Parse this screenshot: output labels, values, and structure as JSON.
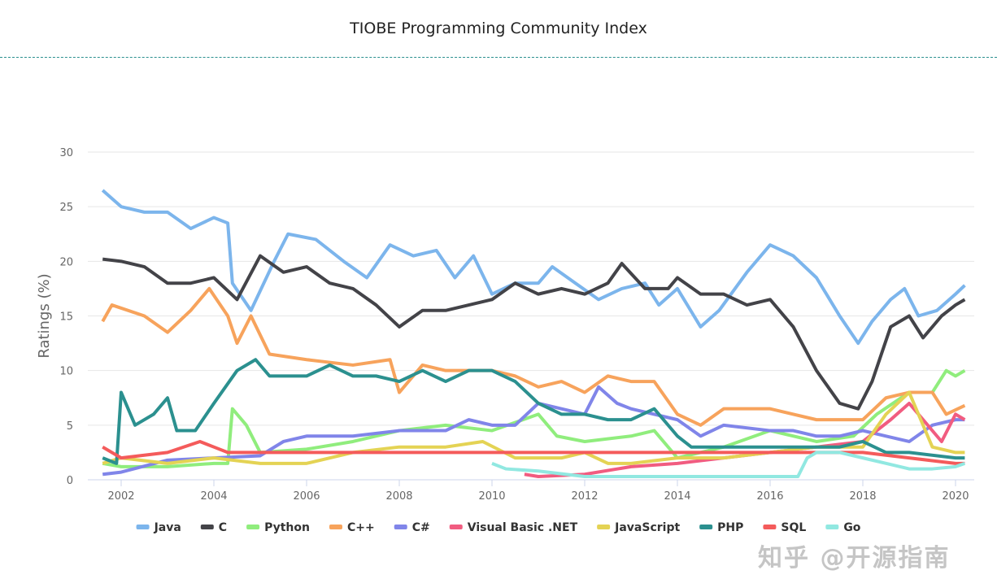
{
  "watermark": "知乎 @开源指南",
  "chart_data": {
    "type": "line",
    "title": "TIOBE Programming Community Index",
    "ylabel": "Ratings (%)",
    "xlabel": "",
    "xlim": [
      2001.5,
      2020.3
    ],
    "ylim": [
      0,
      30
    ],
    "xticks": [
      2002,
      2004,
      2006,
      2008,
      2010,
      2012,
      2014,
      2016,
      2018,
      2020
    ],
    "yticks": [
      0,
      5,
      10,
      15,
      20,
      25,
      30
    ],
    "grid": true,
    "legend": "bottom",
    "series": [
      {
        "name": "Java",
        "color": "#7cb5ec",
        "points": [
          [
            2001.6,
            26.5
          ],
          [
            2002,
            25
          ],
          [
            2002.5,
            24.5
          ],
          [
            2003,
            24.5
          ],
          [
            2003.5,
            23
          ],
          [
            2004,
            24
          ],
          [
            2004.3,
            23.5
          ],
          [
            2004.4,
            18
          ],
          [
            2004.8,
            15.5
          ],
          [
            2005.3,
            20
          ],
          [
            2005.6,
            22.5
          ],
          [
            2006.2,
            22
          ],
          [
            2006.8,
            20
          ],
          [
            2007.3,
            18.5
          ],
          [
            2007.8,
            21.5
          ],
          [
            2008.3,
            20.5
          ],
          [
            2008.8,
            21
          ],
          [
            2009.2,
            18.5
          ],
          [
            2009.6,
            20.5
          ],
          [
            2010,
            17
          ],
          [
            2010.5,
            18
          ],
          [
            2011,
            18
          ],
          [
            2011.3,
            19.5
          ],
          [
            2011.8,
            18
          ],
          [
            2012.3,
            16.5
          ],
          [
            2012.8,
            17.5
          ],
          [
            2013.3,
            18
          ],
          [
            2013.6,
            16
          ],
          [
            2014,
            17.5
          ],
          [
            2014.5,
            14
          ],
          [
            2014.9,
            15.5
          ],
          [
            2015.5,
            19
          ],
          [
            2016,
            21.5
          ],
          [
            2016.5,
            20.5
          ],
          [
            2017,
            18.5
          ],
          [
            2017.5,
            15
          ],
          [
            2017.9,
            12.5
          ],
          [
            2018.2,
            14.5
          ],
          [
            2018.6,
            16.5
          ],
          [
            2018.9,
            17.5
          ],
          [
            2019.2,
            15
          ],
          [
            2019.6,
            15.5
          ],
          [
            2020,
            17
          ],
          [
            2020.2,
            17.8
          ]
        ]
      },
      {
        "name": "C",
        "color": "#434348",
        "points": [
          [
            2001.6,
            20.2
          ],
          [
            2002,
            20
          ],
          [
            2002.5,
            19.5
          ],
          [
            2003,
            18
          ],
          [
            2003.5,
            18
          ],
          [
            2004,
            18.5
          ],
          [
            2004.5,
            16.5
          ],
          [
            2005,
            20.5
          ],
          [
            2005.5,
            19
          ],
          [
            2006,
            19.5
          ],
          [
            2006.5,
            18
          ],
          [
            2007,
            17.5
          ],
          [
            2007.5,
            16
          ],
          [
            2008,
            14
          ],
          [
            2008.5,
            15.5
          ],
          [
            2009,
            15.5
          ],
          [
            2009.5,
            16
          ],
          [
            2010,
            16.5
          ],
          [
            2010.5,
            18
          ],
          [
            2011,
            17
          ],
          [
            2011.5,
            17.5
          ],
          [
            2012,
            17
          ],
          [
            2012.5,
            18
          ],
          [
            2012.8,
            19.8
          ],
          [
            2013.3,
            17.5
          ],
          [
            2013.8,
            17.5
          ],
          [
            2014,
            18.5
          ],
          [
            2014.5,
            17
          ],
          [
            2015,
            17
          ],
          [
            2015.5,
            16
          ],
          [
            2016,
            16.5
          ],
          [
            2016.5,
            14
          ],
          [
            2017,
            10
          ],
          [
            2017.5,
            7
          ],
          [
            2017.9,
            6.5
          ],
          [
            2018.2,
            9
          ],
          [
            2018.6,
            14
          ],
          [
            2019,
            15
          ],
          [
            2019.3,
            13
          ],
          [
            2019.7,
            15
          ],
          [
            2020,
            16
          ],
          [
            2020.2,
            16.5
          ]
        ]
      },
      {
        "name": "Python",
        "color": "#90ed7d",
        "points": [
          [
            2001.6,
            1.5
          ],
          [
            2002,
            1.2
          ],
          [
            2003,
            1.2
          ],
          [
            2004,
            1.5
          ],
          [
            2004.3,
            1.5
          ],
          [
            2004.4,
            6.5
          ],
          [
            2004.7,
            5
          ],
          [
            2005,
            2.5
          ],
          [
            2006,
            2.8
          ],
          [
            2007,
            3.5
          ],
          [
            2008,
            4.5
          ],
          [
            2009,
            5
          ],
          [
            2010,
            4.5
          ],
          [
            2011,
            6
          ],
          [
            2011.4,
            4
          ],
          [
            2012,
            3.5
          ],
          [
            2013,
            4
          ],
          [
            2013.5,
            4.5
          ],
          [
            2014,
            2
          ],
          [
            2015,
            3
          ],
          [
            2016,
            4.5
          ],
          [
            2017,
            3.5
          ],
          [
            2017.8,
            4
          ],
          [
            2018.3,
            6
          ],
          [
            2019,
            8
          ],
          [
            2019.5,
            8
          ],
          [
            2019.8,
            10
          ],
          [
            2020,
            9.5
          ],
          [
            2020.2,
            10
          ]
        ]
      },
      {
        "name": "C++",
        "color": "#f7a35c",
        "points": [
          [
            2001.6,
            14.5
          ],
          [
            2001.8,
            16
          ],
          [
            2002.5,
            15
          ],
          [
            2003,
            13.5
          ],
          [
            2003.5,
            15.5
          ],
          [
            2003.9,
            17.5
          ],
          [
            2004.3,
            15
          ],
          [
            2004.5,
            12.5
          ],
          [
            2004.8,
            15
          ],
          [
            2005.2,
            11.5
          ],
          [
            2006,
            11
          ],
          [
            2007,
            10.5
          ],
          [
            2007.8,
            11
          ],
          [
            2008,
            8
          ],
          [
            2008.5,
            10.5
          ],
          [
            2009,
            10
          ],
          [
            2010,
            10
          ],
          [
            2010.5,
            9.5
          ],
          [
            2011,
            8.5
          ],
          [
            2011.5,
            9
          ],
          [
            2012,
            8
          ],
          [
            2012.5,
            9.5
          ],
          [
            2013,
            9
          ],
          [
            2013.5,
            9
          ],
          [
            2014,
            6
          ],
          [
            2014.5,
            5
          ],
          [
            2015,
            6.5
          ],
          [
            2016,
            6.5
          ],
          [
            2017,
            5.5
          ],
          [
            2018,
            5.5
          ],
          [
            2018.5,
            7.5
          ],
          [
            2019,
            8
          ],
          [
            2019.5,
            8
          ],
          [
            2019.8,
            6
          ],
          [
            2020.2,
            6.8
          ]
        ]
      },
      {
        "name": "C#",
        "color": "#8085e9",
        "points": [
          [
            2001.6,
            0.5
          ],
          [
            2002,
            0.7
          ],
          [
            2003,
            1.8
          ],
          [
            2004,
            2
          ],
          [
            2005,
            2.2
          ],
          [
            2005.5,
            3.5
          ],
          [
            2006,
            4
          ],
          [
            2007,
            4
          ],
          [
            2008,
            4.5
          ],
          [
            2009,
            4.5
          ],
          [
            2009.5,
            5.5
          ],
          [
            2010,
            5
          ],
          [
            2010.5,
            5
          ],
          [
            2011,
            7
          ],
          [
            2011.5,
            6.5
          ],
          [
            2012,
            6
          ],
          [
            2012.3,
            8.5
          ],
          [
            2012.7,
            7
          ],
          [
            2013,
            6.5
          ],
          [
            2013.5,
            6
          ],
          [
            2014,
            5.5
          ],
          [
            2014.5,
            4
          ],
          [
            2015,
            5
          ],
          [
            2016,
            4.5
          ],
          [
            2016.5,
            4.5
          ],
          [
            2017,
            4
          ],
          [
            2017.5,
            4
          ],
          [
            2018,
            4.5
          ],
          [
            2018.5,
            4
          ],
          [
            2019,
            3.5
          ],
          [
            2019.5,
            5
          ],
          [
            2020,
            5.5
          ],
          [
            2020.2,
            5.5
          ]
        ]
      },
      {
        "name": "Visual Basic .NET",
        "color": "#f15c80",
        "points": [
          [
            2010.7,
            0.5
          ],
          [
            2011,
            0.3
          ],
          [
            2012,
            0.5
          ],
          [
            2013,
            1.2
          ],
          [
            2014,
            1.5
          ],
          [
            2015,
            2
          ],
          [
            2016,
            2.5
          ],
          [
            2017,
            3
          ],
          [
            2018,
            3.5
          ],
          [
            2018.3,
            4.5
          ],
          [
            2018.6,
            5.5
          ],
          [
            2019,
            7
          ],
          [
            2019.4,
            5
          ],
          [
            2019.7,
            3.5
          ],
          [
            2020,
            6
          ],
          [
            2020.2,
            5.5
          ]
        ]
      },
      {
        "name": "JavaScript",
        "color": "#e4d354",
        "points": [
          [
            2001.6,
            1.5
          ],
          [
            2002,
            2
          ],
          [
            2003,
            1.5
          ],
          [
            2004,
            2
          ],
          [
            2005,
            1.5
          ],
          [
            2006,
            1.5
          ],
          [
            2007,
            2.5
          ],
          [
            2008,
            3
          ],
          [
            2009,
            3
          ],
          [
            2009.8,
            3.5
          ],
          [
            2010.5,
            2
          ],
          [
            2011,
            2
          ],
          [
            2011.5,
            2
          ],
          [
            2012,
            2.5
          ],
          [
            2012.5,
            1.5
          ],
          [
            2013,
            1.5
          ],
          [
            2014,
            2
          ],
          [
            2015,
            2
          ],
          [
            2016,
            2.5
          ],
          [
            2017,
            3
          ],
          [
            2018,
            3
          ],
          [
            2018.5,
            6
          ],
          [
            2019,
            8
          ],
          [
            2019.5,
            3
          ],
          [
            2020,
            2.5
          ],
          [
            2020.2,
            2.5
          ]
        ]
      },
      {
        "name": "PHP",
        "color": "#2b908f",
        "points": [
          [
            2001.6,
            2
          ],
          [
            2001.9,
            1.5
          ],
          [
            2002,
            8
          ],
          [
            2002.3,
            5
          ],
          [
            2002.7,
            6
          ],
          [
            2003,
            7.5
          ],
          [
            2003.2,
            4.5
          ],
          [
            2003.6,
            4.5
          ],
          [
            2004,
            7
          ],
          [
            2004.5,
            10
          ],
          [
            2004.9,
            11
          ],
          [
            2005.2,
            9.5
          ],
          [
            2006,
            9.5
          ],
          [
            2006.5,
            10.5
          ],
          [
            2007,
            9.5
          ],
          [
            2007.5,
            9.5
          ],
          [
            2008,
            9
          ],
          [
            2008.5,
            10
          ],
          [
            2009,
            9
          ],
          [
            2009.5,
            10
          ],
          [
            2010,
            10
          ],
          [
            2010.5,
            9
          ],
          [
            2011,
            7
          ],
          [
            2011.5,
            6
          ],
          [
            2012,
            6
          ],
          [
            2012.5,
            5.5
          ],
          [
            2013,
            5.5
          ],
          [
            2013.5,
            6.5
          ],
          [
            2014,
            4
          ],
          [
            2014.3,
            3
          ],
          [
            2015,
            3
          ],
          [
            2016,
            3
          ],
          [
            2017,
            3
          ],
          [
            2017.5,
            3
          ],
          [
            2018,
            3.5
          ],
          [
            2018.5,
            2.5
          ],
          [
            2019,
            2.5
          ],
          [
            2020,
            2
          ],
          [
            2020.2,
            2
          ]
        ]
      },
      {
        "name": "SQL",
        "color": "#f45b5b",
        "points": [
          [
            2001.6,
            3
          ],
          [
            2002,
            2
          ],
          [
            2003,
            2.5
          ],
          [
            2003.7,
            3.5
          ],
          [
            2004,
            3
          ],
          [
            2004.3,
            2.5
          ],
          [
            2018,
            2.5
          ],
          [
            2019,
            2
          ],
          [
            2020,
            1.5
          ],
          [
            2020.2,
            1.5
          ]
        ]
      },
      {
        "name": "Go",
        "color": "#91e8e1",
        "points": [
          [
            2010,
            1.5
          ],
          [
            2010.3,
            1
          ],
          [
            2011,
            0.8
          ],
          [
            2012,
            0.3
          ],
          [
            2013,
            0.3
          ],
          [
            2014,
            0.3
          ],
          [
            2015,
            0.3
          ],
          [
            2016,
            0.3
          ],
          [
            2016.6,
            0.3
          ],
          [
            2016.8,
            2
          ],
          [
            2017,
            2.5
          ],
          [
            2017.5,
            2.5
          ],
          [
            2018,
            2
          ],
          [
            2018.5,
            1.5
          ],
          [
            2019,
            1
          ],
          [
            2019.5,
            1
          ],
          [
            2020,
            1.2
          ],
          [
            2020.2,
            1.5
          ]
        ]
      }
    ]
  }
}
